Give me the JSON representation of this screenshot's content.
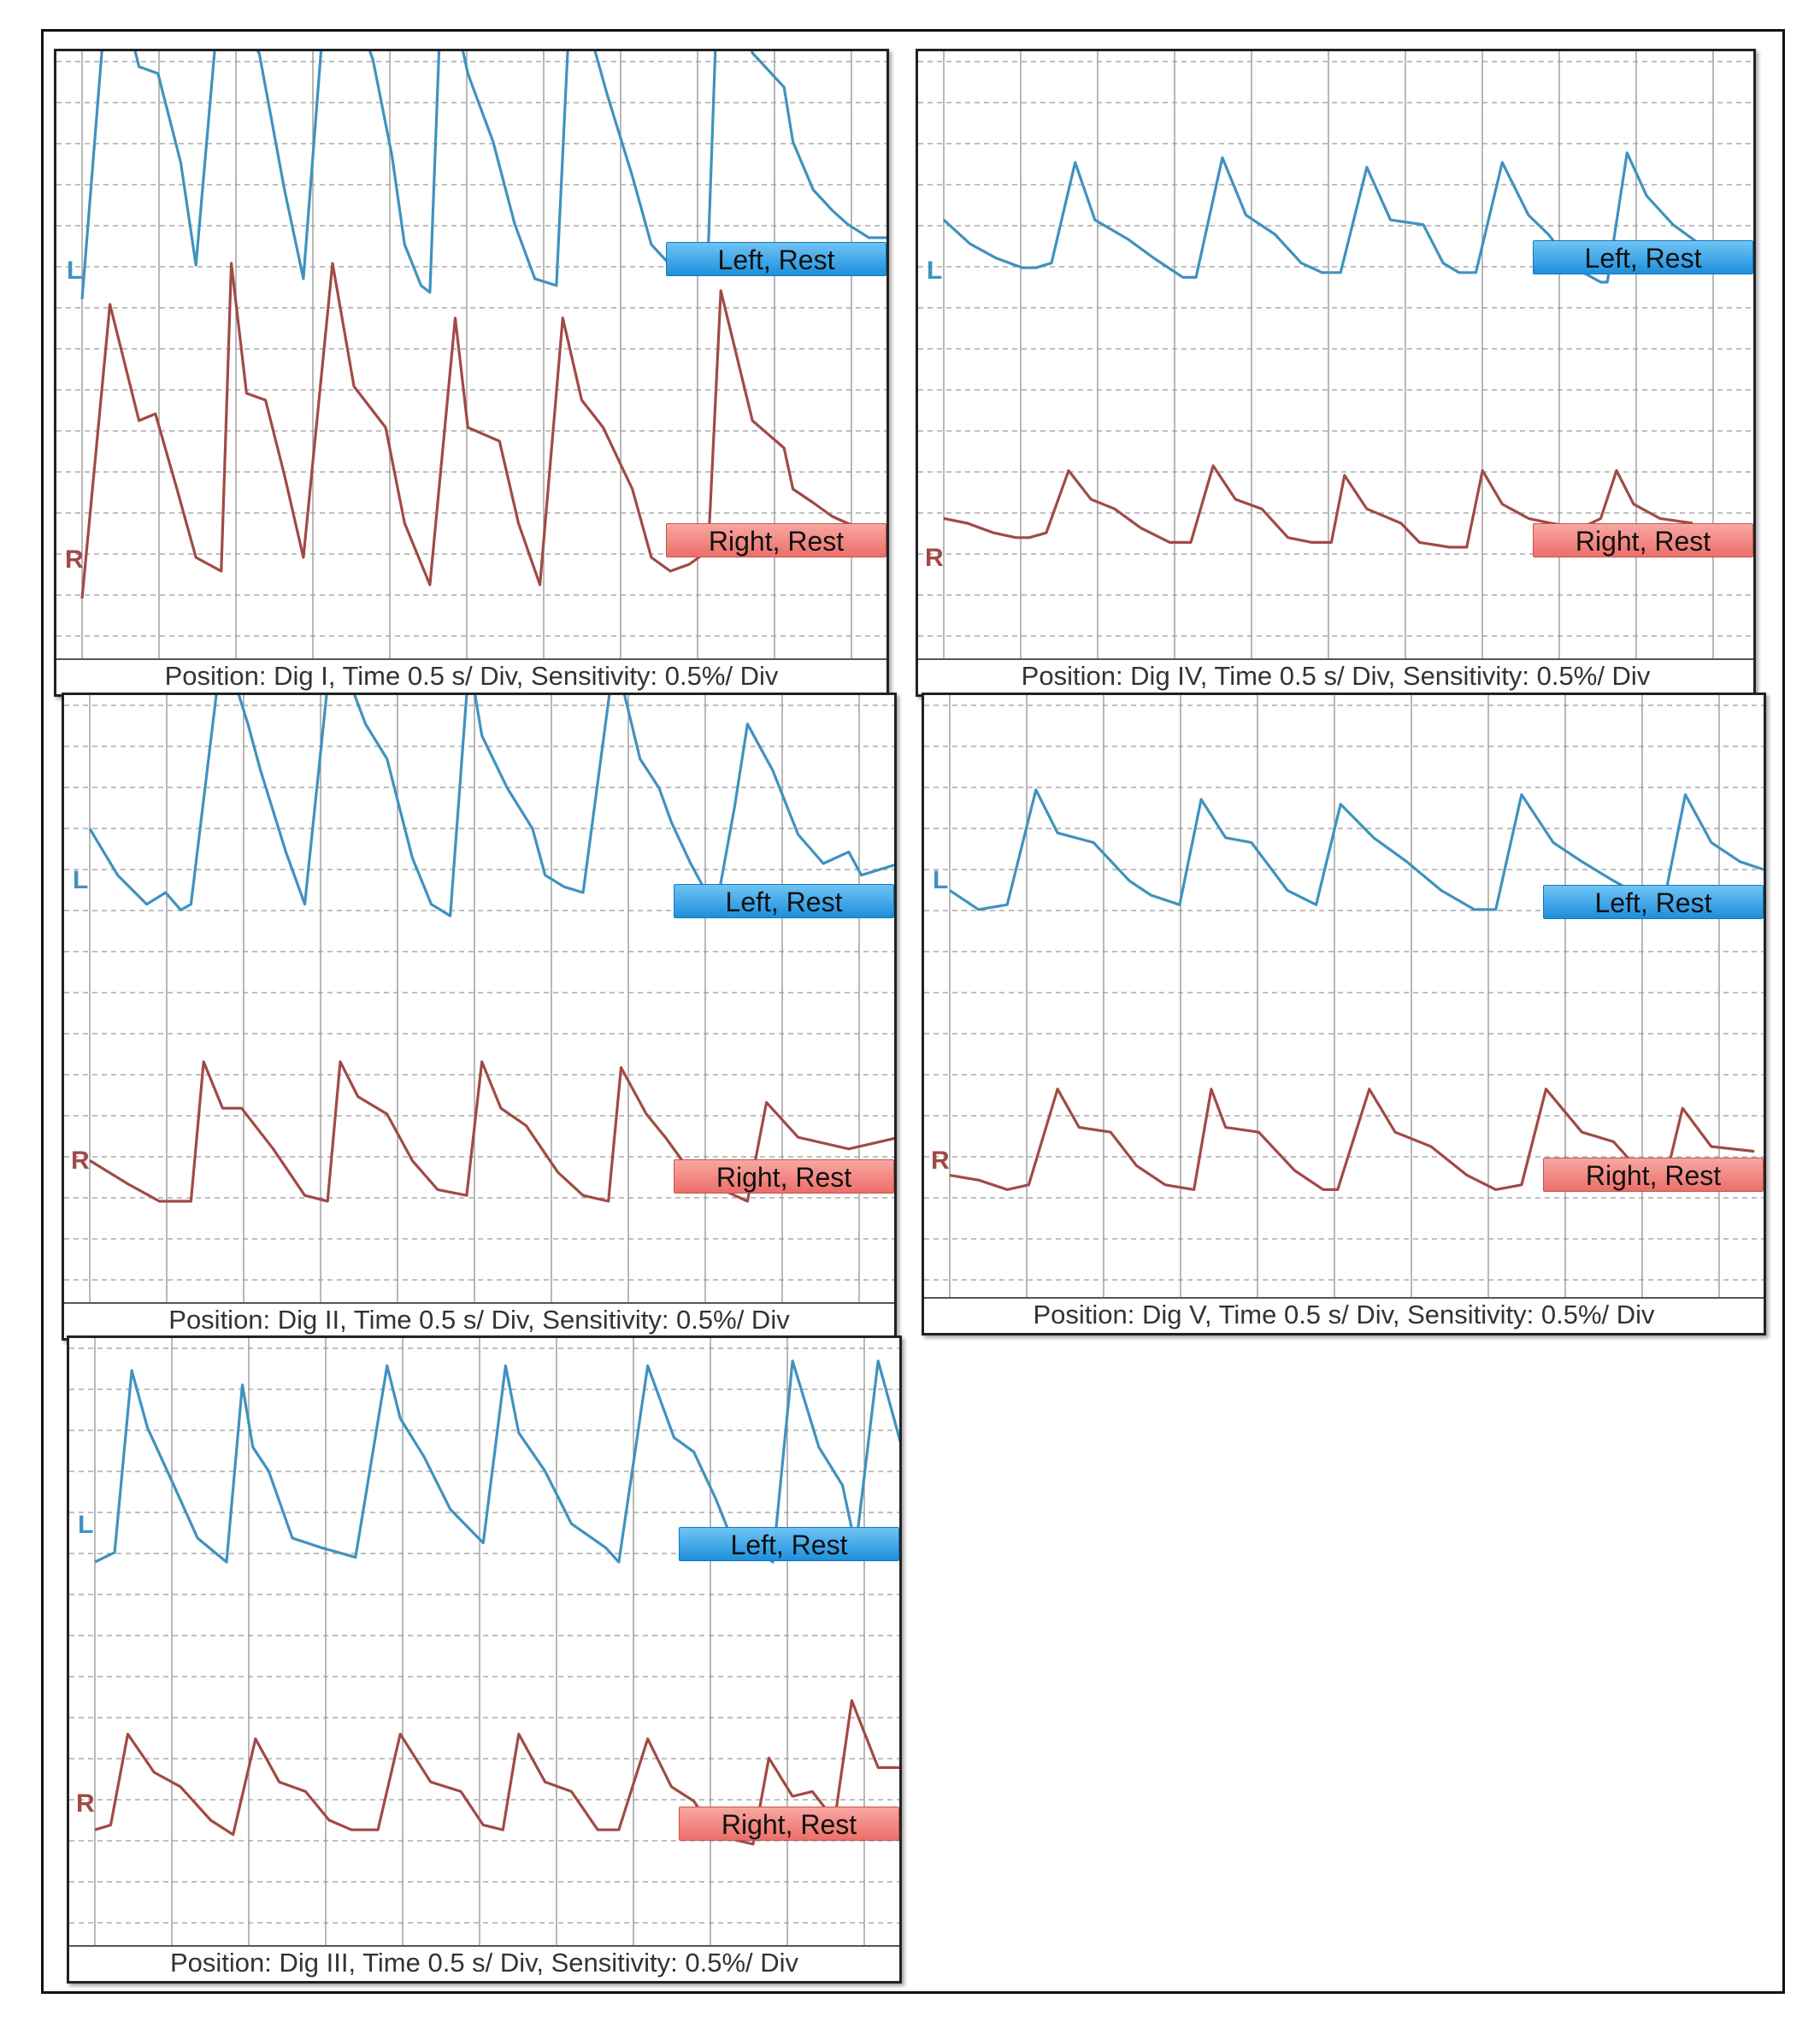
{
  "colors": {
    "left_trace": "#3f92bf",
    "right_trace": "#a14a45",
    "grid": "#9a9a9a"
  },
  "chart_data": [
    {
      "type": "line",
      "title": "Position: Dig I,  Time 0.5 s/ Div,  Sensitivity: 0.5%/ Div",
      "channel_letters": [
        "L",
        "R"
      ],
      "grid": true,
      "x_unit": "s",
      "series": [
        {
          "name": "Left, Rest",
          "x": [
            0,
            0.22,
            0.45,
            0.6,
            0.78,
            0.9,
            1.15,
            1.32,
            1.4,
            1.6,
            1.75,
            1.98,
            2.15,
            2.3,
            2.45,
            2.55,
            2.68,
            2.75,
            2.85,
            3.05,
            3.25,
            3.42,
            3.58,
            3.75,
            3.88,
            4.03,
            4.15,
            4.35,
            4.5,
            4.65,
            4.8,
            4.95,
            5.05,
            5.3,
            5.55,
            5.62,
            5.78,
            5.93,
            6.05,
            6.22,
            6.4
          ],
          "y": [
            0,
            5.1,
            3.4,
            3.3,
            2.0,
            0.5,
            5.8,
            3.8,
            3.6,
            1.6,
            0.3,
            5.8,
            4.3,
            3.5,
            2.1,
            0.8,
            0.2,
            0.1,
            5.0,
            3.3,
            2.3,
            1.1,
            0.3,
            0.2,
            5.2,
            3.8,
            3.0,
            1.8,
            0.8,
            0.5,
            0.5,
            0.7,
            5.9,
            3.6,
            3.1,
            2.3,
            1.6,
            1.3,
            1.1,
            0.9,
            0.9
          ]
        },
        {
          "name": "Right, Rest",
          "x": [
            0,
            0.22,
            0.45,
            0.58,
            0.75,
            0.9,
            1.1,
            1.18,
            1.3,
            1.45,
            1.6,
            1.75,
            1.98,
            2.15,
            2.4,
            2.55,
            2.75,
            2.95,
            3.05,
            3.3,
            3.45,
            3.62,
            3.8,
            3.95,
            4.12,
            4.35,
            4.5,
            4.65,
            4.8,
            4.95,
            5.05,
            5.3,
            5.55,
            5.62,
            5.78,
            5.93,
            6.05,
            6.4
          ],
          "y": [
            0,
            4.3,
            2.6,
            2.7,
            1.6,
            0.6,
            0.4,
            4.9,
            3.0,
            2.9,
            1.8,
            0.6,
            4.9,
            3.1,
            2.5,
            1.1,
            0.2,
            4.1,
            2.5,
            2.3,
            1.1,
            0.2,
            4.1,
            2.9,
            2.5,
            1.6,
            0.6,
            0.4,
            0.5,
            0.7,
            4.5,
            2.6,
            2.2,
            1.6,
            1.4,
            1.2,
            1.1,
            0.9
          ]
        }
      ]
    },
    {
      "type": "line",
      "title": "Position: Dig II,  Time 0.5 s/ Div,  Sensitivity: 0.5%/ Div",
      "channel_letters": [
        "L",
        "R"
      ],
      "grid": true,
      "x_unit": "s",
      "series": [
        {
          "name": "Left, Rest",
          "x": [
            0,
            0.22,
            0.45,
            0.6,
            0.72,
            0.8,
            1.05,
            1.25,
            1.35,
            1.55,
            1.7,
            1.92,
            2.18,
            2.35,
            2.55,
            2.7,
            2.85,
            3.0,
            3.1,
            3.3,
            3.5,
            3.6,
            3.75,
            3.9,
            4.15,
            4.35,
            4.5,
            4.6,
            4.75,
            4.95,
            5.1,
            5.2,
            5.4,
            5.6,
            5.8,
            6.0,
            6.1,
            6.4
          ],
          "y": [
            1.6,
            0.8,
            0.3,
            0.5,
            0.2,
            0.3,
            4.8,
            3.4,
            2.6,
            1.2,
            0.3,
            4.9,
            3.4,
            2.8,
            1.1,
            0.3,
            0.1,
            4.5,
            3.2,
            2.3,
            1.6,
            0.8,
            0.6,
            0.5,
            4.6,
            2.8,
            2.3,
            1.7,
            1.0,
            0.2,
            2.0,
            3.4,
            2.6,
            1.5,
            1.0,
            1.2,
            0.8,
            1.0
          ]
        },
        {
          "name": "Right, Rest",
          "x": [
            0,
            0.3,
            0.55,
            0.8,
            0.9,
            1.05,
            1.2,
            1.45,
            1.7,
            1.88,
            1.98,
            2.12,
            2.35,
            2.55,
            2.75,
            2.98,
            3.1,
            3.25,
            3.45,
            3.7,
            3.9,
            4.1,
            4.2,
            4.4,
            4.55,
            4.75,
            5.0,
            5.2,
            5.35,
            5.6,
            5.8,
            6.0,
            6.4
          ],
          "y": [
            0.7,
            0.3,
            0.0,
            0.0,
            2.4,
            1.6,
            1.6,
            0.9,
            0.1,
            0.0,
            2.4,
            1.8,
            1.5,
            0.7,
            0.2,
            0.1,
            2.4,
            1.6,
            1.3,
            0.5,
            0.1,
            0.0,
            2.3,
            1.5,
            1.1,
            0.5,
            0.2,
            0.0,
            1.7,
            1.1,
            1.0,
            0.9,
            1.1
          ]
        }
      ]
    },
    {
      "type": "line",
      "title": "Position: Dig III,  Time 0.5 s/ Div,  Sensitivity: 0.5%/ Div",
      "channel_letters": [
        "L",
        "R"
      ],
      "grid": true,
      "x_unit": "s",
      "series": [
        {
          "name": "Left, Rest",
          "x": [
            0,
            0.15,
            0.28,
            0.4,
            0.6,
            0.78,
            1.0,
            1.12,
            1.2,
            1.32,
            1.5,
            1.72,
            1.98,
            2.22,
            2.32,
            2.5,
            2.7,
            2.95,
            3.12,
            3.22,
            3.42,
            3.62,
            3.88,
            3.98,
            4.2,
            4.4,
            4.55,
            4.72,
            4.85,
            5.05,
            5.15,
            5.3,
            5.5,
            5.68,
            5.78,
            5.95,
            6.15
          ],
          "y": [
            0,
            0.2,
            4.0,
            2.8,
            1.6,
            0.5,
            0.0,
            3.7,
            2.4,
            1.9,
            0.5,
            0.3,
            0.1,
            4.1,
            3.0,
            2.2,
            1.1,
            0.4,
            4.1,
            2.7,
            1.9,
            0.8,
            0.3,
            0.0,
            4.1,
            2.6,
            2.3,
            1.3,
            0.4,
            0.2,
            0.0,
            4.2,
            2.4,
            1.6,
            0.3,
            4.2,
            2.2
          ]
        },
        {
          "name": "Right, Rest",
          "x": [
            0,
            0.12,
            0.25,
            0.45,
            0.65,
            0.88,
            1.05,
            1.22,
            1.4,
            1.6,
            1.78,
            1.95,
            2.15,
            2.32,
            2.55,
            2.78,
            2.95,
            3.1,
            3.22,
            3.42,
            3.62,
            3.82,
            3.98,
            4.2,
            4.38,
            4.55,
            4.72,
            4.85,
            5.0,
            5.12,
            5.3,
            5.45,
            5.62,
            5.75,
            5.95,
            6.15
          ],
          "y": [
            0.3,
            0.4,
            2.3,
            1.5,
            1.2,
            0.5,
            0.2,
            2.2,
            1.3,
            1.1,
            0.5,
            0.3,
            0.3,
            2.3,
            1.3,
            1.1,
            0.4,
            0.3,
            2.3,
            1.3,
            1.1,
            0.3,
            0.3,
            2.2,
            1.2,
            0.9,
            0.2,
            0.1,
            0.0,
            1.8,
            1.0,
            1.1,
            0.5,
            3.0,
            1.6,
            1.6
          ]
        }
      ]
    },
    {
      "type": "line",
      "title": "Position: Dig IV,  Time 0.5 s/ Div,  Sensitivity: 0.5%/ Div",
      "channel_letters": [
        "L",
        "R"
      ],
      "grid": true,
      "x_unit": "s",
      "series": [
        {
          "name": "Left, Rest",
          "x": [
            0,
            0.2,
            0.4,
            0.6,
            0.7,
            0.82,
            1.0,
            1.15,
            1.4,
            1.6,
            1.82,
            1.92,
            2.12,
            2.3,
            2.52,
            2.72,
            2.88,
            3.02,
            3.22,
            3.4,
            3.65,
            3.8,
            3.92,
            4.05,
            4.25,
            4.45,
            4.6,
            4.8,
            5.0,
            5.05,
            5.2,
            5.35,
            5.55,
            5.75,
            6.0,
            6.2
          ],
          "y": [
            1.3,
            0.8,
            0.5,
            0.3,
            0.3,
            0.4,
            2.5,
            1.3,
            0.9,
            0.5,
            0.1,
            0.1,
            2.6,
            1.4,
            1.0,
            0.4,
            0.2,
            0.2,
            2.4,
            1.3,
            1.2,
            0.4,
            0.2,
            0.2,
            2.5,
            1.4,
            1.0,
            0.3,
            0.0,
            0.0,
            2.7,
            1.8,
            1.2,
            0.8,
            0.5,
            0.3
          ]
        },
        {
          "name": "Right, Rest",
          "x": [
            0,
            0.18,
            0.38,
            0.55,
            0.65,
            0.78,
            0.95,
            1.12,
            1.3,
            1.5,
            1.72,
            1.88,
            2.05,
            2.22,
            2.42,
            2.62,
            2.8,
            2.95,
            3.05,
            3.22,
            3.48,
            3.62,
            3.85,
            3.98,
            4.1,
            4.25,
            4.45,
            4.62,
            4.85,
            5.0,
            5.12,
            5.25,
            5.45,
            5.7
          ],
          "y": [
            0.6,
            0.5,
            0.3,
            0.2,
            0.2,
            0.3,
            1.6,
            1.0,
            0.8,
            0.4,
            0.1,
            0.1,
            1.7,
            1.0,
            0.8,
            0.2,
            0.1,
            0.1,
            1.5,
            0.8,
            0.5,
            0.1,
            0.0,
            0.0,
            1.6,
            0.9,
            0.6,
            0.5,
            0.4,
            0.6,
            1.6,
            0.9,
            0.6,
            0.5
          ]
        }
      ]
    },
    {
      "type": "line",
      "title": "Position: Dig V,  Time 0.5 s/ Div,  Sensitivity: 0.5%/ Div",
      "channel_letters": [
        "L",
        "R"
      ],
      "grid": true,
      "x_unit": "s",
      "series": [
        {
          "name": "Left, Rest",
          "x": [
            0,
            0.2,
            0.4,
            0.6,
            0.75,
            1.0,
            1.25,
            1.4,
            1.6,
            1.75,
            1.92,
            2.1,
            2.35,
            2.55,
            2.72,
            2.95,
            3.18,
            3.42,
            3.65,
            3.8,
            3.98,
            4.2,
            4.4,
            4.62,
            4.8,
            4.98,
            5.12,
            5.3,
            5.5,
            5.7
          ],
          "y": [
            0.6,
            0.2,
            0.3,
            2.7,
            1.8,
            1.6,
            0.8,
            0.5,
            0.3,
            2.5,
            1.7,
            1.6,
            0.6,
            0.3,
            2.4,
            1.7,
            1.2,
            0.6,
            0.2,
            0.2,
            2.6,
            1.6,
            1.2,
            0.8,
            0.5,
            0.5,
            2.6,
            1.6,
            1.2,
            1.0
          ]
        },
        {
          "name": "Right, Rest",
          "x": [
            0,
            0.2,
            0.4,
            0.55,
            0.75,
            0.9,
            1.12,
            1.3,
            1.5,
            1.7,
            1.82,
            1.92,
            2.15,
            2.4,
            2.6,
            2.7,
            2.92,
            3.1,
            3.35,
            3.6,
            3.8,
            3.98,
            4.15,
            4.4,
            4.62,
            4.8,
            4.98,
            5.1,
            5.3,
            5.6
          ],
          "y": [
            0.4,
            0.3,
            0.1,
            0.2,
            2.2,
            1.4,
            1.3,
            0.6,
            0.2,
            0.1,
            2.2,
            1.4,
            1.3,
            0.5,
            0.1,
            0.1,
            2.2,
            1.3,
            1.0,
            0.4,
            0.1,
            0.2,
            2.2,
            1.3,
            1.1,
            0.5,
            0.3,
            1.8,
            1.0,
            0.9
          ]
        }
      ]
    }
  ]
}
